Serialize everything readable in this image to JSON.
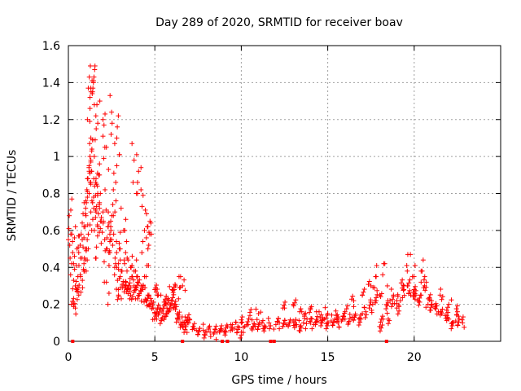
{
  "chart_data": {
    "type": "scatter",
    "title": "Day 289 of 2020, SRMTID for receiver boav",
    "xlabel": "GPS time / hours",
    "ylabel": "SRMTID / TECUs",
    "xlim": [
      0,
      25
    ],
    "ylim": [
      0,
      1.6
    ],
    "xticks": [
      0,
      5,
      10,
      15,
      20
    ],
    "xtick_labels": [
      "0",
      "5",
      "10",
      "15",
      "20"
    ],
    "yticks": [
      0,
      0.2,
      0.4,
      0.6,
      0.8,
      1.0,
      1.2,
      1.4,
      1.6
    ],
    "ytick_labels": [
      "0",
      "0.2",
      "0.4",
      "0.6",
      "0.8",
      "1",
      "1.2",
      "1.4",
      "1.6"
    ],
    "grid": true,
    "marker": "+",
    "color": "#ff0000",
    "series": [
      {
        "name": "SRMTID",
        "x": [
          0.0,
          0.1,
          0.2,
          0.3,
          0.4,
          0.5,
          0.6,
          0.7,
          0.8,
          0.9,
          1.0,
          1.1,
          1.2,
          1.25,
          1.3,
          1.4,
          1.5,
          1.6,
          1.7,
          1.8,
          1.9,
          2.0,
          2.1,
          2.2,
          2.3,
          2.4,
          2.5,
          2.6,
          2.7,
          2.8,
          2.9,
          3.0,
          3.1,
          3.2,
          3.3,
          3.4,
          3.5,
          3.6,
          3.7,
          3.8,
          3.9,
          4.0,
          4.1,
          4.2,
          4.3,
          4.4,
          4.5,
          4.6,
          4.7,
          4.8,
          4.9,
          5.0,
          5.1,
          5.2,
          5.3,
          5.4,
          5.5,
          5.6,
          5.7,
          5.8,
          5.9,
          6.0,
          6.1,
          6.2,
          6.3,
          6.4,
          6.5,
          6.6,
          6.7,
          6.8,
          6.9,
          7.0,
          7.2,
          7.4,
          7.6,
          7.8,
          8.0,
          8.2,
          8.4,
          8.6,
          8.8,
          9.0,
          9.2,
          9.4,
          9.6,
          9.8,
          10.0,
          10.2,
          10.4,
          10.6,
          10.8,
          11.0,
          11.2,
          11.4,
          11.6,
          12.0,
          12.2,
          12.4,
          12.6,
          12.8,
          13.0,
          13.2,
          13.4,
          13.6,
          13.8,
          14.0,
          14.2,
          14.4,
          14.6,
          14.8,
          15.0,
          15.2,
          15.4,
          15.6,
          15.8,
          16.0,
          16.2,
          16.4,
          16.6,
          16.8,
          17.0,
          17.2,
          17.4,
          17.6,
          17.8,
          18.0,
          18.2,
          18.4,
          18.6,
          18.8,
          19.0,
          19.2,
          19.4,
          19.6,
          19.8,
          20.0,
          20.2,
          20.4,
          20.6,
          20.8,
          21.0,
          21.2,
          21.4,
          21.6,
          21.8,
          22.0,
          22.2,
          22.4,
          22.6,
          22.8,
          0.05,
          0.3,
          0.5,
          0.7,
          0.9,
          1.0,
          1.15,
          1.3,
          1.4,
          1.5,
          1.6,
          1.7,
          1.8,
          2.0,
          2.2,
          2.4,
          2.6,
          2.8,
          3.0,
          3.2,
          3.4,
          3.6,
          3.8,
          4.0,
          4.2,
          4.4,
          4.6,
          5.0,
          5.2,
          5.6,
          6.0,
          6.2,
          6.4,
          6.6,
          10.0,
          10.5,
          11.0,
          12.5,
          13.0,
          13.5,
          14.0,
          14.5,
          15.0,
          15.5,
          16.0,
          16.5,
          17.0,
          17.5,
          17.8,
          18.0,
          18.3,
          18.5,
          19.0,
          19.4,
          19.6,
          19.9,
          20.1,
          20.4,
          20.7,
          21.0,
          21.5,
          22.0,
          22.5,
          1.25,
          1.3,
          1.45,
          1.5,
          1.1,
          1.2,
          1.7,
          2.5,
          2.8,
          3.8,
          4.0,
          4.6,
          4.8,
          1.6,
          2.2,
          2.9,
          3.3,
          0.6,
          0.4,
          0.9
        ],
        "y": [
          0.55,
          0.45,
          0.58,
          0.42,
          0.3,
          0.5,
          0.48,
          0.45,
          0.55,
          0.62,
          0.72,
          0.88,
          0.95,
          1.0,
          0.85,
          0.75,
          0.6,
          0.7,
          0.8,
          0.72,
          0.65,
          0.7,
          0.55,
          0.5,
          0.62,
          0.48,
          0.55,
          0.68,
          0.45,
          0.4,
          0.42,
          0.35,
          0.38,
          0.3,
          0.32,
          0.28,
          0.3,
          0.25,
          0.35,
          0.3,
          0.28,
          0.32,
          0.25,
          0.3,
          0.28,
          0.35,
          0.22,
          0.25,
          0.2,
          0.22,
          0.18,
          0.15,
          0.12,
          0.15,
          0.18,
          0.12,
          0.15,
          0.2,
          0.18,
          0.16,
          0.2,
          0.22,
          0.18,
          0.2,
          0.15,
          0.12,
          0.1,
          0.08,
          0.1,
          0.08,
          0.1,
          0.12,
          0.08,
          0.06,
          0.07,
          0.06,
          0.05,
          0.05,
          0.04,
          0.05,
          0.06,
          0.05,
          0.08,
          0.09,
          0.07,
          0.08,
          0.1,
          0.08,
          0.09,
          0.07,
          0.08,
          0.09,
          0.1,
          0.08,
          0.1,
          0.09,
          0.1,
          0.08,
          0.09,
          0.1,
          0.11,
          0.09,
          0.08,
          0.1,
          0.12,
          0.1,
          0.09,
          0.11,
          0.1,
          0.12,
          0.1,
          0.11,
          0.12,
          0.1,
          0.11,
          0.12,
          0.1,
          0.13,
          0.14,
          0.12,
          0.15,
          0.16,
          0.18,
          0.2,
          0.22,
          0.25,
          0.12,
          0.2,
          0.22,
          0.25,
          0.18,
          0.22,
          0.28,
          0.3,
          0.25,
          0.28,
          0.22,
          0.25,
          0.3,
          0.2,
          0.22,
          0.18,
          0.16,
          0.15,
          0.14,
          0.12,
          0.1,
          0.11,
          0.12,
          0.1,
          0.68,
          0.2,
          0.28,
          0.35,
          0.42,
          0.5,
          0.58,
          1.1,
          1.35,
          1.0,
          0.45,
          0.62,
          0.9,
          1.2,
          1.05,
          0.58,
          0.82,
          0.95,
          0.5,
          0.6,
          0.45,
          0.4,
          0.38,
          0.35,
          0.82,
          0.6,
          0.5,
          0.28,
          0.25,
          0.22,
          0.28,
          0.3,
          0.35,
          0.3,
          0.05,
          0.14,
          0.15,
          0.18,
          0.2,
          0.16,
          0.18,
          0.16,
          0.15,
          0.14,
          0.16,
          0.22,
          0.25,
          0.3,
          0.35,
          0.08,
          0.42,
          0.12,
          0.22,
          0.3,
          0.38,
          0.35,
          0.25,
          0.38,
          0.32,
          0.2,
          0.25,
          0.2,
          0.16,
          1.32,
          1.37,
          1.4,
          1.28,
          0.78,
          0.92,
          1.18,
          1.24,
          1.1,
          0.98,
          0.8,
          0.62,
          0.58,
          0.88,
          0.32,
          0.25,
          0.3,
          0.25,
          0.18,
          0.38
        ],
        "zero_markers_x": [
          0.25,
          6.6,
          8.9,
          9.2,
          11.7,
          11.9,
          18.4
        ]
      }
    ]
  }
}
